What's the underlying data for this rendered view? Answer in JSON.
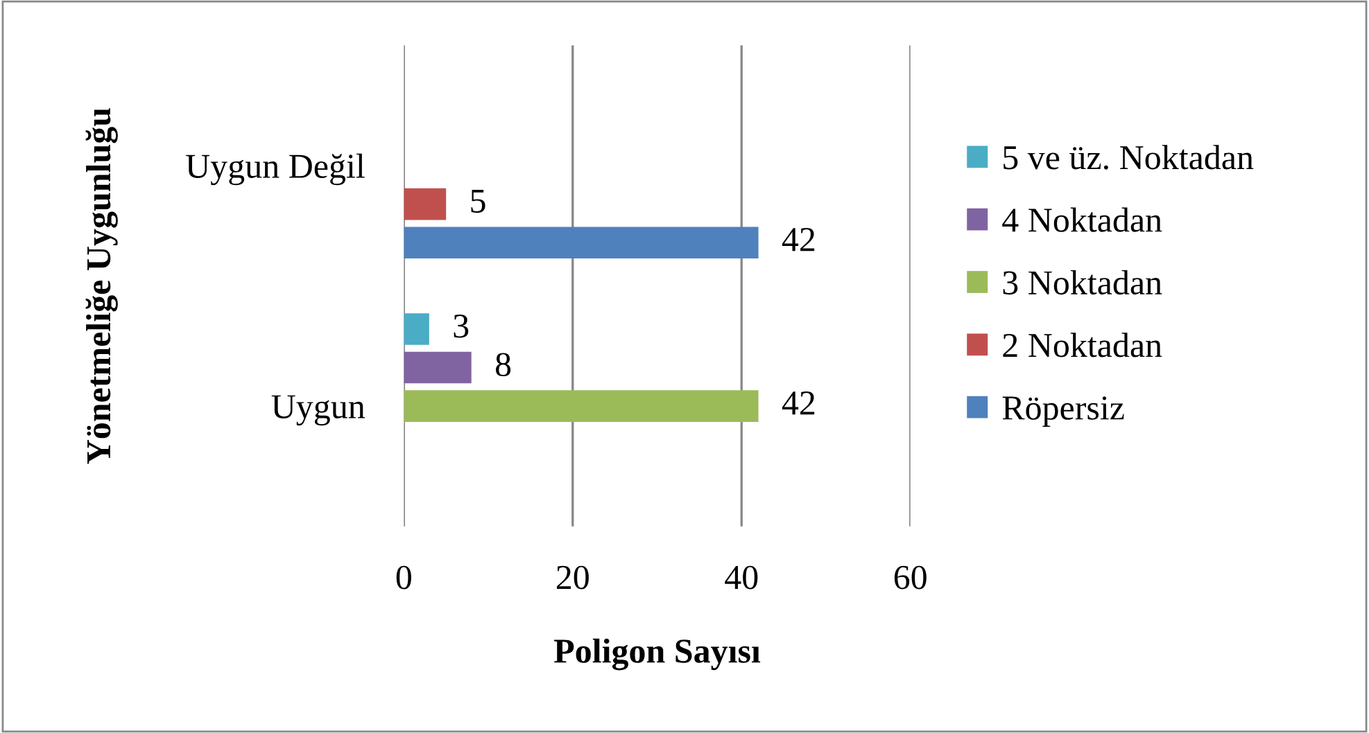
{
  "chart_data": {
    "type": "bar",
    "orientation": "horizontal",
    "xlabel": "Poligon Sayısı",
    "ylabel": "Yönetmeliğe Uygunluğu",
    "categories": [
      "Uygun Değil",
      "Uygun"
    ],
    "series": [
      {
        "name": "Röpersiz",
        "color": "#4f81bd",
        "values": [
          42,
          null
        ]
      },
      {
        "name": "2 Noktadan",
        "color": "#c0504d",
        "values": [
          5,
          null
        ]
      },
      {
        "name": "3 Noktadan",
        "color": "#9bbb59",
        "values": [
          null,
          42
        ]
      },
      {
        "name": "4 Noktadan",
        "color": "#8064a2",
        "values": [
          null,
          8
        ]
      },
      {
        "name": "5 ve üz. Noktadan",
        "color": "#4bacc6",
        "values": [
          null,
          3
        ]
      }
    ],
    "xlim": [
      0,
      60
    ],
    "xticks": [
      0,
      20,
      40,
      60
    ],
    "grid": "x",
    "legend": "right",
    "data_labels": true
  }
}
